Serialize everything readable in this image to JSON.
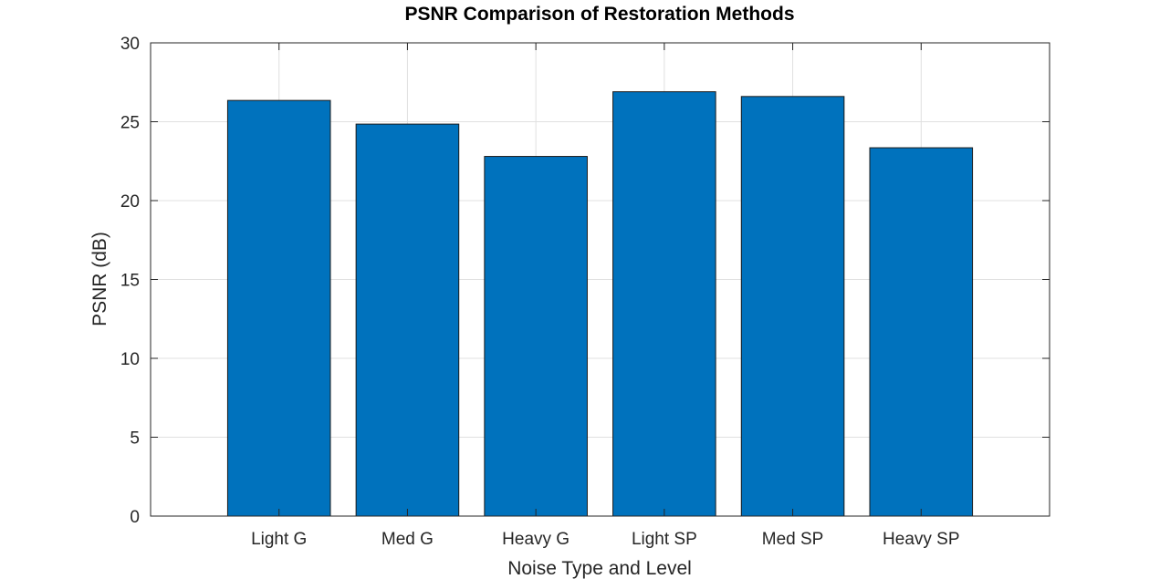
{
  "chart_data": {
    "type": "bar",
    "title": "PSNR Comparison of Restoration Methods",
    "xlabel": "Noise Type and Level",
    "ylabel": "PSNR (dB)",
    "categories": [
      "Light G",
      "Med G",
      "Heavy G",
      "Light SP",
      "Med SP",
      "Heavy SP"
    ],
    "values": [
      26.35,
      24.85,
      22.8,
      26.9,
      26.6,
      23.35
    ],
    "ylim": [
      0,
      30
    ],
    "yticks": [
      0,
      5,
      10,
      15,
      20,
      25,
      30
    ],
    "grid": true,
    "legend": "none",
    "colors": {
      "bar_fill": "#0072BD",
      "bar_edge": "#1a1a1a",
      "grid": "#e0e0e0",
      "axes": "#262626"
    }
  }
}
